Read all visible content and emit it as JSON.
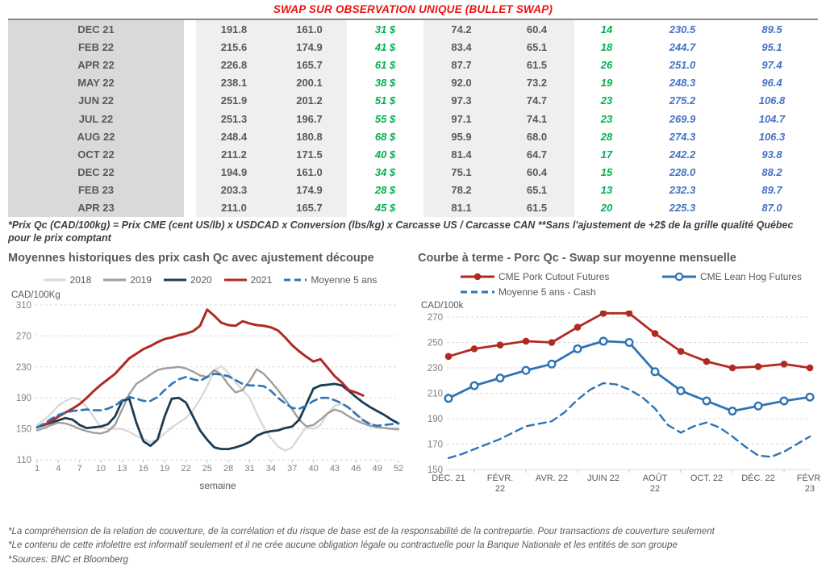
{
  "page_title": "SWAP SUR OBSERVATION UNIQUE (BULLET SWAP)",
  "colors": {
    "title_red": "#ee1111",
    "text_gray": "#595959",
    "green": "#00b050",
    "blue": "#4472c4",
    "band_light": "#efefef",
    "band_dark": "#d9d9d9",
    "grid": "#d9d9d9",
    "tick_gray": "#808080"
  },
  "table": {
    "rows": [
      [
        "DEC 21",
        "191.8",
        "161.0",
        "31 $",
        "74.2",
        "60.4",
        "14",
        "230.5",
        "89.5"
      ],
      [
        "FEB 22",
        "215.6",
        "174.9",
        "41 $",
        "83.4",
        "65.1",
        "18",
        "244.7",
        "95.1"
      ],
      [
        "APR 22",
        "226.8",
        "165.7",
        "61 $",
        "87.7",
        "61.5",
        "26",
        "251.0",
        "97.4"
      ],
      [
        "MAY 22",
        "238.1",
        "200.1",
        "38 $",
        "92.0",
        "73.2",
        "19",
        "248.3",
        "96.4"
      ],
      [
        "JUN 22",
        "251.9",
        "201.2",
        "51 $",
        "97.3",
        "74.7",
        "23",
        "275.2",
        "106.8"
      ],
      [
        "JUL 22",
        "251.3",
        "196.7",
        "55 $",
        "97.1",
        "74.1",
        "23",
        "269.9",
        "104.7"
      ],
      [
        "AUG 22",
        "248.4",
        "180.8",
        "68 $",
        "95.9",
        "68.0",
        "28",
        "274.3",
        "106.3"
      ],
      [
        "OCT 22",
        "211.2",
        "171.5",
        "40 $",
        "81.4",
        "64.7",
        "17",
        "242.2",
        "93.8"
      ],
      [
        "DEC 22",
        "194.9",
        "161.0",
        "34 $",
        "75.1",
        "60.4",
        "15",
        "228.0",
        "88.2"
      ],
      [
        "FEB 23",
        "203.3",
        "174.9",
        "28 $",
        "78.2",
        "65.1",
        "13",
        "232.3",
        "89.7"
      ],
      [
        "APR 23",
        "211.0",
        "165.7",
        "45 $",
        "81.1",
        "61.5",
        "20",
        "225.3",
        "87.0"
      ]
    ]
  },
  "table_footnote": "*Prix Qc (CAD/100kg) = Prix CME (cent US/lb) x USDCAD x Conversion (lbs/kg) x Carcasse US / Carcasse CAN **Sans l'ajustement de +2$ de la grille qualité Québec pour le prix comptant",
  "chart_data": [
    {
      "type": "line",
      "title": "Moyennes historiques des prix cash Qc avec ajustement découpe",
      "ylabel": "CAD/100Kg",
      "xlabel": "semaine",
      "ylim": [
        110,
        310
      ],
      "ytick_step": 40,
      "xticks": [
        1,
        4,
        7,
        10,
        13,
        16,
        19,
        22,
        25,
        28,
        31,
        34,
        37,
        40,
        43,
        46,
        49,
        52
      ],
      "grid": true,
      "legend_position": "top",
      "series": [
        {
          "name": "2018",
          "color": "#d9d9d9",
          "style": "solid",
          "width": 2.4,
          "x_start": 1,
          "values": [
            155,
            162,
            170,
            180,
            186,
            190,
            188,
            178,
            165,
            152,
            150,
            150,
            150,
            146,
            141,
            137,
            133,
            136,
            144,
            152,
            158,
            164,
            174,
            188,
            205,
            225,
            231,
            222,
            210,
            200,
            190,
            170,
            152,
            138,
            127,
            122,
            126,
            140,
            152,
            150,
            155,
            170,
            180,
            182,
            178,
            170,
            162,
            157,
            153,
            151,
            150,
            148
          ]
        },
        {
          "name": "2019",
          "color": "#9e9e9e",
          "style": "solid",
          "width": 2.4,
          "x_start": 1,
          "values": [
            148,
            151,
            155,
            158,
            157,
            154,
            150,
            147,
            145,
            144,
            147,
            155,
            175,
            195,
            208,
            214,
            220,
            226,
            228,
            229,
            230,
            228,
            224,
            219,
            217,
            226,
            220,
            207,
            197,
            200,
            212,
            227,
            221,
            211,
            200,
            188,
            175,
            162,
            153,
            155,
            162,
            170,
            175,
            172,
            166,
            161,
            157,
            154,
            152,
            151,
            150,
            150
          ]
        },
        {
          "name": "2020",
          "color": "#1c3c54",
          "style": "solid",
          "width": 2.8,
          "x_start": 1,
          "values": [
            152,
            155,
            158,
            161,
            164,
            162,
            155,
            151,
            152,
            153,
            156,
            166,
            186,
            189,
            158,
            134,
            128,
            136,
            166,
            189,
            190,
            184,
            166,
            148,
            136,
            126,
            124,
            124,
            126,
            129,
            133,
            141,
            145,
            147,
            148,
            151,
            153,
            162,
            182,
            202,
            206,
            207,
            208,
            206,
            199,
            191,
            184,
            178,
            173,
            168,
            162,
            157
          ]
        },
        {
          "name": "2021",
          "color": "#b02a23",
          "style": "solid",
          "width": 3,
          "x_start": 1,
          "values": [
            null,
            155,
            160,
            166,
            171,
            176,
            182,
            190,
            199,
            207,
            214,
            221,
            231,
            241,
            247,
            253,
            257,
            262,
            266,
            268,
            271,
            273,
            276,
            283,
            304,
            296,
            287,
            284,
            283,
            289,
            286,
            284,
            283,
            281,
            277,
            268,
            258,
            250,
            243,
            237,
            240,
            229,
            218,
            210,
            200,
            197,
            193,
            null,
            null,
            null,
            null,
            null
          ]
        },
        {
          "name": "Moyenne 5 ans",
          "color": "#2e74b5",
          "style": "dashed",
          "width": 2.6,
          "x_start": 1,
          "values": [
            152,
            157,
            163,
            168,
            171,
            173,
            174,
            175,
            174,
            174,
            176,
            180,
            187,
            191,
            189,
            186,
            186,
            191,
            200,
            208,
            214,
            217,
            214,
            212,
            217,
            221,
            220,
            218,
            213,
            208,
            206,
            206,
            205,
            199,
            190,
            183,
            177,
            176,
            180,
            186,
            190,
            190,
            187,
            183,
            177,
            169,
            161,
            156,
            154,
            155,
            156,
            157
          ]
        }
      ]
    },
    {
      "type": "line",
      "title": "Courbe à terme - Porc Qc - Swap sur moyenne mensuelle",
      "ylabel": "CAD/100k",
      "xlabel": "",
      "ylim": [
        150,
        270
      ],
      "ytick_step": 20,
      "xtick_positions": [
        0,
        2,
        4,
        6,
        8,
        10,
        12,
        14
      ],
      "xtick_labels": [
        "DÉC. 21",
        "FÉVR.\n22",
        "AVR. 22",
        "JUIN 22",
        "AOÛT\n22",
        "OCT. 22",
        "DÉC. 22",
        "FÉVR.\n23"
      ],
      "grid": true,
      "legend_position": "top",
      "series": [
        {
          "name": "CME Pork Cutout Futures",
          "color": "#b02a23",
          "style": "solid",
          "width": 2.8,
          "marker": "filled",
          "x_start": 0,
          "x_step": 1,
          "values": [
            239,
            245,
            248,
            251,
            250,
            262,
            273,
            273,
            257,
            243,
            235,
            230,
            231,
            233,
            230
          ]
        },
        {
          "name": "CME Lean Hog Futures",
          "color": "#2e74b5",
          "style": "solid",
          "width": 2.8,
          "marker": "open",
          "x_start": 0,
          "x_step": 1,
          "values": [
            206,
            216,
            222,
            228,
            233,
            245,
            251,
            250,
            227,
            212,
            204,
            196,
            200,
            204,
            207
          ]
        },
        {
          "name": "Moyenne 5 ans - Cash",
          "color": "#2e74b5",
          "style": "dashed",
          "width": 2.4,
          "x_start": 0,
          "x_step": 0.5,
          "values": [
            159,
            162,
            166,
            170,
            174,
            179,
            184,
            186,
            188,
            195,
            205,
            213,
            218,
            217,
            213,
            207,
            198,
            185,
            179,
            184,
            187,
            183,
            176,
            168,
            161,
            160,
            164,
            170,
            176
          ]
        }
      ]
    }
  ],
  "footer": {
    "lines": [
      "*La compréhension de la relation de couverture, de la corrélation et du risque de base est de la responsabilité de la contrepartie. Pour transactions de couverture seulement",
      "*Le contenu de cette infolettre est informatif seulement et il ne crée aucune obligation légale ou contractuelle pour la Banque Nationale et les entités de son groupe",
      "*Sources: BNC et Bloomberg"
    ]
  }
}
